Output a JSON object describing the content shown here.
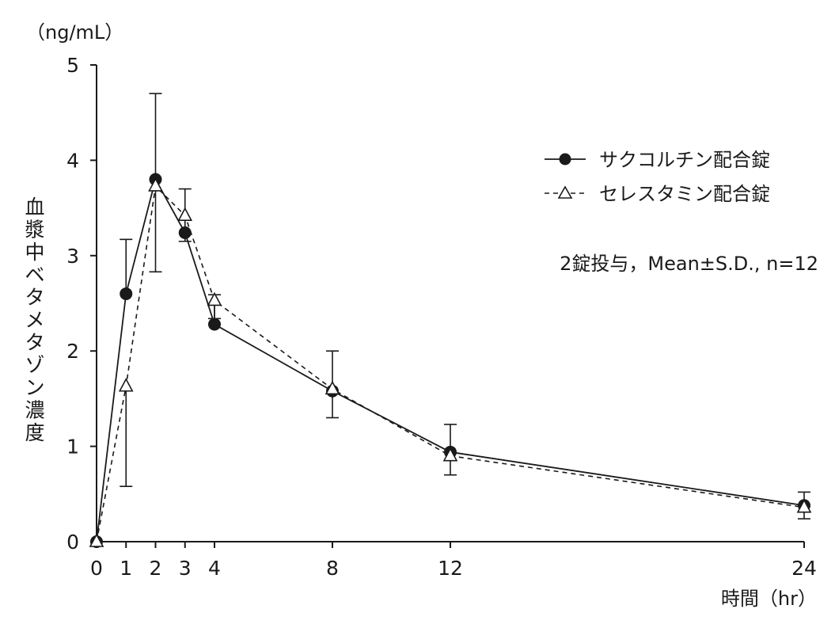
{
  "chart_data": {
    "type": "line",
    "ylabel": "血漿中ベタメタゾン濃度",
    "yunit": "（ng/mL）",
    "xlabel": "時間（hr）",
    "xlim": [
      0,
      24
    ],
    "ylim": [
      0,
      5
    ],
    "xticks": [
      0,
      1,
      2,
      3,
      4,
      8,
      12,
      24
    ],
    "yticks": [
      0,
      1,
      2,
      3,
      4,
      5
    ],
    "annotation": "2錠投与，Mean±S.D., n=12",
    "legend_position": "top-right",
    "grid": false,
    "series": [
      {
        "name": "サクコルチン配合錠",
        "marker": "filled-circle",
        "line_style": "solid",
        "points": [
          {
            "x": 0,
            "y": 0.0
          },
          {
            "x": 1,
            "y": 2.6,
            "sd": 0.57
          },
          {
            "x": 2,
            "y": 3.8,
            "sd": 0.9
          },
          {
            "x": 3,
            "y": 3.24,
            "sd": 0.46
          },
          {
            "x": 4,
            "y": 2.28,
            "sd": 0.31
          },
          {
            "x": 8,
            "y": 1.58,
            "sd": 0.42
          },
          {
            "x": 12,
            "y": 0.94,
            "sd": 0.29
          },
          {
            "x": 24,
            "y": 0.38,
            "sd": 0.14
          }
        ]
      },
      {
        "name": "セレスタミン配合錠",
        "marker": "open-triangle",
        "line_style": "dashed",
        "points": [
          {
            "x": 0,
            "y": 0.0
          },
          {
            "x": 1,
            "y": 1.63,
            "sd": 1.05
          },
          {
            "x": 2,
            "y": 3.73,
            "sd": 0.9
          },
          {
            "x": 3,
            "y": 3.42,
            "sd": 0.27
          },
          {
            "x": 4,
            "y": 2.53,
            "sd": 0.19
          },
          {
            "x": 8,
            "y": 1.6,
            "sd": 0.3
          },
          {
            "x": 12,
            "y": 0.9,
            "sd": 0.2
          },
          {
            "x": 24,
            "y": 0.36,
            "sd": 0.12
          }
        ]
      }
    ]
  }
}
